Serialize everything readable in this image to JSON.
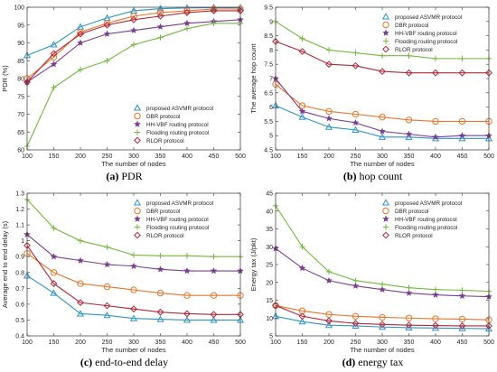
{
  "colors": {
    "ASVMR": "#2e94c5",
    "DBR": "#e8762c",
    "HHVBF": "#7b3f8f",
    "Flooding": "#75b83f",
    "RLOR": "#b0283a"
  },
  "legend_labels": [
    "proposed ASVMR protocol",
    "DBR protocol",
    "HH-VBF routing protocol",
    "Flooding routing protocol",
    "RLOR protocol"
  ],
  "chart_data": [
    {
      "type": "line",
      "caption_letter": "(a)",
      "caption_text": "PDR",
      "xlabel": "The number of nodes",
      "ylabel": "PDR (%)",
      "x": [
        100,
        150,
        200,
        250,
        300,
        350,
        400,
        450,
        500
      ],
      "xlim": [
        100,
        500
      ],
      "ylim": [
        60,
        100
      ],
      "yticks": [
        60,
        65,
        70,
        75,
        80,
        85,
        90,
        95,
        100
      ],
      "legend_position": "bottom-right",
      "series": [
        {
          "name": "proposed ASVMR protocol",
          "key": "ASVMR",
          "marker": "triangle",
          "values": [
            86.5,
            89.5,
            94.5,
            97,
            99,
            99.6,
            99.8,
            99.9,
            99.9
          ]
        },
        {
          "name": "DBR protocol",
          "key": "DBR",
          "marker": "circle",
          "values": [
            80,
            86,
            93,
            95.5,
            97.5,
            98.5,
            99,
            99.5,
            99.5
          ]
        },
        {
          "name": "HH-VBF routing protocol",
          "key": "HHVBF",
          "marker": "star",
          "values": [
            79,
            84,
            90,
            92.5,
            93.5,
            94.5,
            95.5,
            96,
            96.5
          ]
        },
        {
          "name": "Flooding routing protocol",
          "key": "Flooding",
          "marker": "plus",
          "values": [
            61,
            77.5,
            82.5,
            85,
            89.5,
            91.5,
            94,
            95.5,
            95.5
          ]
        },
        {
          "name": "RLOR protocol",
          "key": "RLOR",
          "marker": "diamond",
          "values": [
            79,
            87,
            92.5,
            95,
            96.5,
            97.5,
            98.5,
            99,
            99
          ]
        }
      ]
    },
    {
      "type": "line",
      "caption_letter": "(b)",
      "caption_text": "hop count",
      "xlabel": "The number of nodes",
      "ylabel": "The average hop count",
      "x": [
        100,
        150,
        200,
        250,
        300,
        350,
        400,
        450,
        500
      ],
      "xlim": [
        100,
        500
      ],
      "ylim": [
        4.5,
        9.5
      ],
      "yticks": [
        4.5,
        5,
        5.5,
        6,
        6.5,
        7,
        7.5,
        8,
        8.5,
        9,
        9.5
      ],
      "legend_position": "top-right",
      "series": [
        {
          "name": "proposed ASVMR protocol",
          "key": "ASVMR",
          "marker": "triangle",
          "values": [
            6.05,
            5.65,
            5.3,
            5.2,
            4.95,
            4.95,
            4.9,
            4.9,
            4.9
          ]
        },
        {
          "name": "DBR protocol",
          "key": "DBR",
          "marker": "circle",
          "values": [
            6.8,
            6.05,
            5.85,
            5.75,
            5.65,
            5.55,
            5.5,
            5.5,
            5.5
          ]
        },
        {
          "name": "HH-VBF routing protocol",
          "key": "HHVBF",
          "marker": "star",
          "values": [
            7.0,
            5.85,
            5.6,
            5.45,
            5.15,
            5.05,
            4.95,
            5.0,
            5.0
          ]
        },
        {
          "name": "Flooding routing protocol",
          "key": "Flooding",
          "marker": "plus",
          "values": [
            9.0,
            8.4,
            8.0,
            7.9,
            7.8,
            7.8,
            7.7,
            7.7,
            7.7
          ]
        },
        {
          "name": "RLOR protocol",
          "key": "RLOR",
          "marker": "diamond",
          "values": [
            8.3,
            7.95,
            7.5,
            7.45,
            7.25,
            7.2,
            7.2,
            7.2,
            7.2
          ]
        }
      ]
    },
    {
      "type": "line",
      "caption_letter": "(c)",
      "caption_text": "end-to-end delay",
      "xlabel": "The number of nodes",
      "ylabel": "Average end to end delay (s)",
      "x": [
        100,
        150,
        200,
        250,
        300,
        350,
        400,
        450,
        500
      ],
      "xlim": [
        100,
        500
      ],
      "ylim": [
        0.4,
        1.3
      ],
      "yticks": [
        0.4,
        0.5,
        0.6,
        0.7,
        0.8,
        0.9,
        1.0,
        1.1,
        1.2,
        1.3
      ],
      "legend_position": "top-right",
      "series": [
        {
          "name": "proposed ASVMR protocol",
          "key": "ASVMR",
          "marker": "triangle",
          "values": [
            0.78,
            0.67,
            0.54,
            0.53,
            0.51,
            0.505,
            0.5,
            0.5,
            0.5
          ]
        },
        {
          "name": "DBR protocol",
          "key": "DBR",
          "marker": "circle",
          "values": [
            0.92,
            0.8,
            0.73,
            0.71,
            0.69,
            0.67,
            0.655,
            0.655,
            0.655
          ]
        },
        {
          "name": "HH-VBF routing protocol",
          "key": "HHVBF",
          "marker": "star",
          "values": [
            1.04,
            0.9,
            0.875,
            0.85,
            0.84,
            0.82,
            0.81,
            0.81,
            0.81
          ]
        },
        {
          "name": "Flooding routing protocol",
          "key": "Flooding",
          "marker": "plus",
          "values": [
            1.26,
            1.08,
            1.0,
            0.96,
            0.91,
            0.905,
            0.905,
            0.9,
            0.9
          ]
        },
        {
          "name": "RLOR protocol",
          "key": "RLOR",
          "marker": "diamond",
          "values": [
            0.97,
            0.73,
            0.61,
            0.59,
            0.57,
            0.55,
            0.54,
            0.535,
            0.535
          ]
        }
      ]
    },
    {
      "type": "line",
      "caption_letter": "(d)",
      "caption_text": "energy tax",
      "xlabel": "The number of nodes",
      "ylabel": "Energy tax (J/pkt)",
      "x": [
        100,
        150,
        200,
        250,
        300,
        350,
        400,
        450,
        500
      ],
      "xlim": [
        100,
        500
      ],
      "ylim": [
        5,
        45
      ],
      "yticks": [
        5,
        10,
        15,
        20,
        25,
        30,
        35,
        40,
        45
      ],
      "legend_position": "top-right",
      "series": [
        {
          "name": "proposed ASVMR protocol",
          "key": "ASVMR",
          "marker": "triangle",
          "values": [
            10.5,
            9.0,
            8.0,
            7.8,
            7.5,
            7.3,
            7.2,
            7.1,
            7.0
          ]
        },
        {
          "name": "DBR protocol",
          "key": "DBR",
          "marker": "circle",
          "values": [
            13.5,
            12.0,
            11.0,
            10.5,
            10.2,
            10.0,
            9.8,
            9.7,
            9.5
          ]
        },
        {
          "name": "HH-VBF routing protocol",
          "key": "HHVBF",
          "marker": "star",
          "values": [
            29.5,
            24.0,
            20.5,
            19.0,
            18.0,
            17.0,
            16.5,
            16.2,
            16.0
          ]
        },
        {
          "name": "Flooding routing protocol",
          "key": "Flooding",
          "marker": "plus",
          "values": [
            41.5,
            30.0,
            23.0,
            20.5,
            19.5,
            18.5,
            18.0,
            17.8,
            17.5
          ]
        },
        {
          "name": "RLOR protocol",
          "key": "RLOR",
          "marker": "diamond",
          "values": [
            13.5,
            10.5,
            9.2,
            8.5,
            8.2,
            8.0,
            7.9,
            7.8,
            7.8
          ]
        }
      ]
    }
  ]
}
